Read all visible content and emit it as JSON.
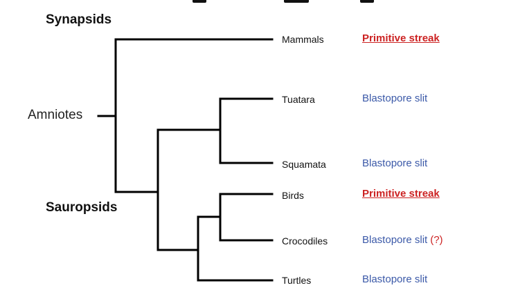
{
  "diagram": {
    "groups": {
      "synapsids": "Synapsids",
      "sauropsids": "Sauropsids",
      "amniotes": "Amniotes"
    },
    "taxa": [
      {
        "name": "Mammals",
        "mode": "Primitive streak",
        "kind": "streak",
        "note": ""
      },
      {
        "name": "Tuatara",
        "mode": "Blastopore slit",
        "kind": "slit",
        "note": ""
      },
      {
        "name": "Squamata",
        "mode": "Blastopore slit",
        "kind": "slit",
        "note": ""
      },
      {
        "name": "Birds",
        "mode": "Primitive streak",
        "kind": "streak",
        "note": ""
      },
      {
        "name": "Crocodiles",
        "mode": "Blastopore slit",
        "kind": "slit",
        "note": "(?)"
      },
      {
        "name": "Turtles",
        "mode": "Blastopore slit",
        "kind": "slit",
        "note": ""
      }
    ],
    "colors": {
      "streak": "#cc2222",
      "slit": "#3b59a8",
      "note": "#cc2222",
      "tree": "#000000"
    }
  }
}
